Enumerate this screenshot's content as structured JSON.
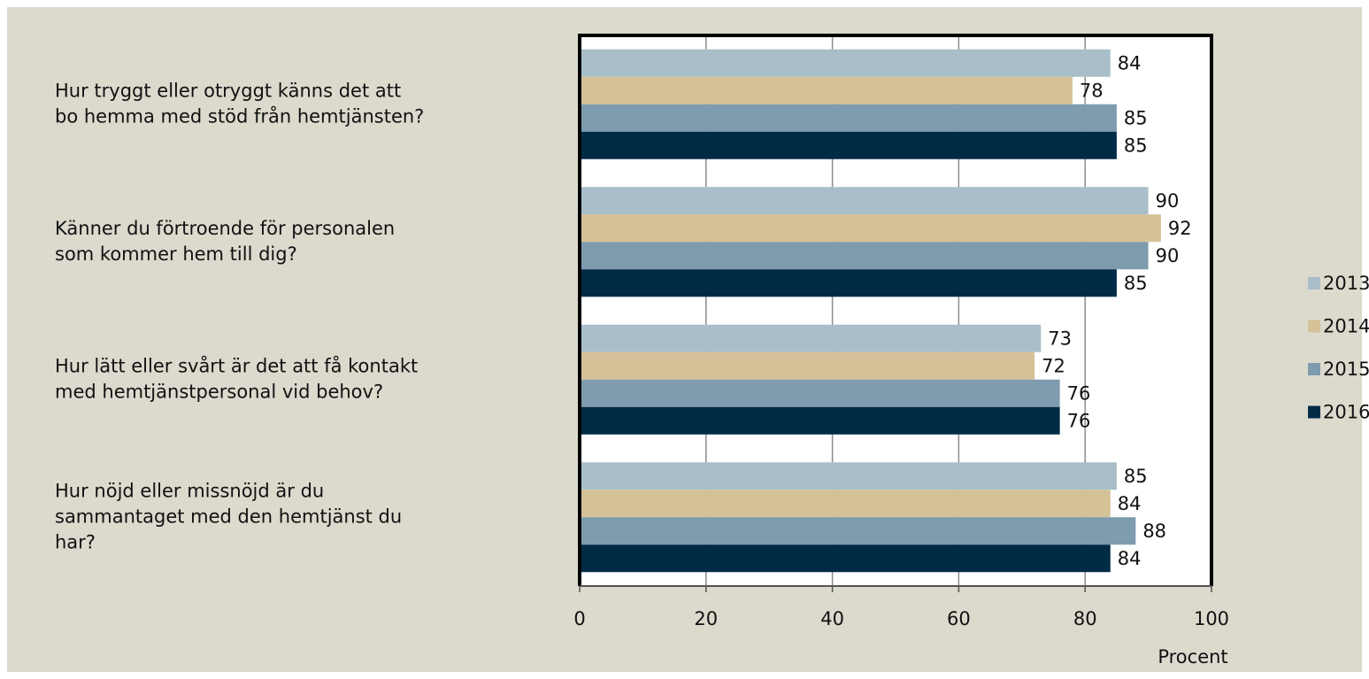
{
  "chart_data": {
    "type": "bar",
    "orientation": "horizontal",
    "categories": [
      "Hur tryggt eller otryggt känns det att\nbo hemma med stöd från hemtjänsten?",
      "Känner du förtroende för personalen\nsom kommer hem till dig?",
      "Hur lätt eller svårt är det att få kontakt\nmed hemtjänstpersonal vid behov?",
      "Hur nöjd eller missnöjd är du\nsammantaget med den hemtjänst du\nhar?"
    ],
    "series": [
      {
        "name": "2013",
        "color": "#a8bec9",
        "values": [
          84,
          90,
          73,
          85
        ]
      },
      {
        "name": "2014",
        "color": "#d4c197",
        "values": [
          78,
          92,
          72,
          84
        ]
      },
      {
        "name": "2015",
        "color": "#7f9bae",
        "values": [
          85,
          90,
          76,
          88
        ]
      },
      {
        "name": "2016",
        "color": "#002b46",
        "values": [
          85,
          85,
          76,
          84
        ]
      }
    ],
    "xlabel": "Procent",
    "xlim": [
      0,
      100
    ],
    "xticks": [
      0,
      20,
      40,
      60,
      80,
      100
    ],
    "grid": true,
    "legend_position": "right"
  }
}
